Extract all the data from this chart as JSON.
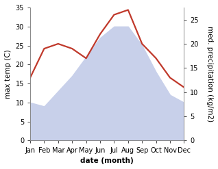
{
  "months": [
    "Jan",
    "Feb",
    "Mar",
    "Apr",
    "May",
    "Jun",
    "Jul",
    "Aug",
    "Sep",
    "Oct",
    "Nov",
    "Dec"
  ],
  "temperature": [
    10,
    9,
    13,
    17,
    22,
    27,
    30,
    30,
    25,
    18,
    12,
    10
  ],
  "precipitation": [
    13,
    19,
    20,
    19,
    17,
    22,
    26,
    27,
    20,
    17,
    13,
    11
  ],
  "temp_fill_color": "#c8d0ea",
  "precip_color": "#c0392b",
  "left_ylim": [
    0,
    35
  ],
  "right_ylim": [
    0,
    27.5
  ],
  "left_yticks": [
    0,
    5,
    10,
    15,
    20,
    25,
    30,
    35
  ],
  "right_yticks": [
    0,
    5,
    10,
    15,
    20,
    25
  ],
  "xlabel": "date (month)",
  "ylabel_left": "max temp (C)",
  "ylabel_right": "med. precipitation (kg/m2)",
  "bg_color": "#ffffff",
  "label_fontsize": 7.5,
  "tick_fontsize": 7,
  "precip_linewidth": 1.6
}
